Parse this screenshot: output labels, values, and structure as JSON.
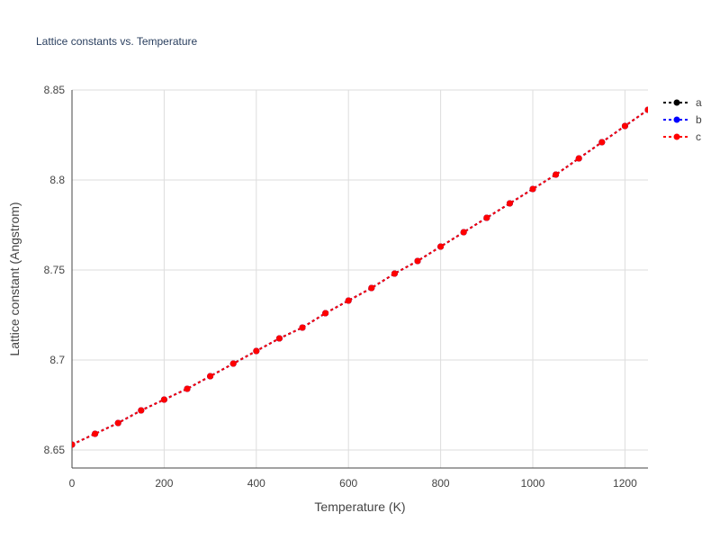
{
  "chart_data": {
    "type": "line",
    "title": "Lattice constants vs. Temperature",
    "xlabel": "Temperature (K)",
    "ylabel": "Lattice constant (Angstrom)",
    "xlim": [
      0,
      1250
    ],
    "ylim": [
      8.64,
      8.85
    ],
    "x_ticks": [
      0,
      200,
      400,
      600,
      800,
      1000,
      1200
    ],
    "x_tick_labels": [
      "0",
      "200",
      "400",
      "600",
      "800",
      "1000",
      "1200"
    ],
    "y_ticks": [
      8.65,
      8.7,
      8.75,
      8.8,
      8.85
    ],
    "y_tick_labels": [
      "8.65",
      "8.7",
      "8.75",
      "8.8",
      "8.85"
    ],
    "grid": true,
    "legend_position": "right",
    "x": [
      0,
      50,
      100,
      150,
      200,
      250,
      300,
      350,
      400,
      450,
      500,
      550,
      600,
      650,
      700,
      750,
      800,
      850,
      900,
      950,
      1000,
      1050,
      1100,
      1150,
      1200,
      1250
    ],
    "series": [
      {
        "name": "a",
        "color": "#000000",
        "values": [
          8.653,
          8.659,
          8.665,
          8.672,
          8.678,
          8.684,
          8.691,
          8.698,
          8.705,
          8.712,
          8.718,
          8.726,
          8.733,
          8.74,
          8.748,
          8.755,
          8.763,
          8.771,
          8.779,
          8.787,
          8.795,
          8.803,
          8.812,
          8.821,
          8.83,
          8.839
        ]
      },
      {
        "name": "b",
        "color": "#0000ff",
        "values": [
          8.653,
          8.659,
          8.665,
          8.672,
          8.678,
          8.684,
          8.691,
          8.698,
          8.705,
          8.712,
          8.718,
          8.726,
          8.733,
          8.74,
          8.748,
          8.755,
          8.763,
          8.771,
          8.779,
          8.787,
          8.795,
          8.803,
          8.812,
          8.821,
          8.83,
          8.839
        ]
      },
      {
        "name": "c",
        "color": "#ff0000",
        "values": [
          8.653,
          8.659,
          8.665,
          8.672,
          8.678,
          8.684,
          8.691,
          8.698,
          8.705,
          8.712,
          8.718,
          8.726,
          8.733,
          8.74,
          8.748,
          8.755,
          8.763,
          8.771,
          8.779,
          8.787,
          8.795,
          8.803,
          8.812,
          8.821,
          8.83,
          8.839
        ]
      }
    ]
  }
}
